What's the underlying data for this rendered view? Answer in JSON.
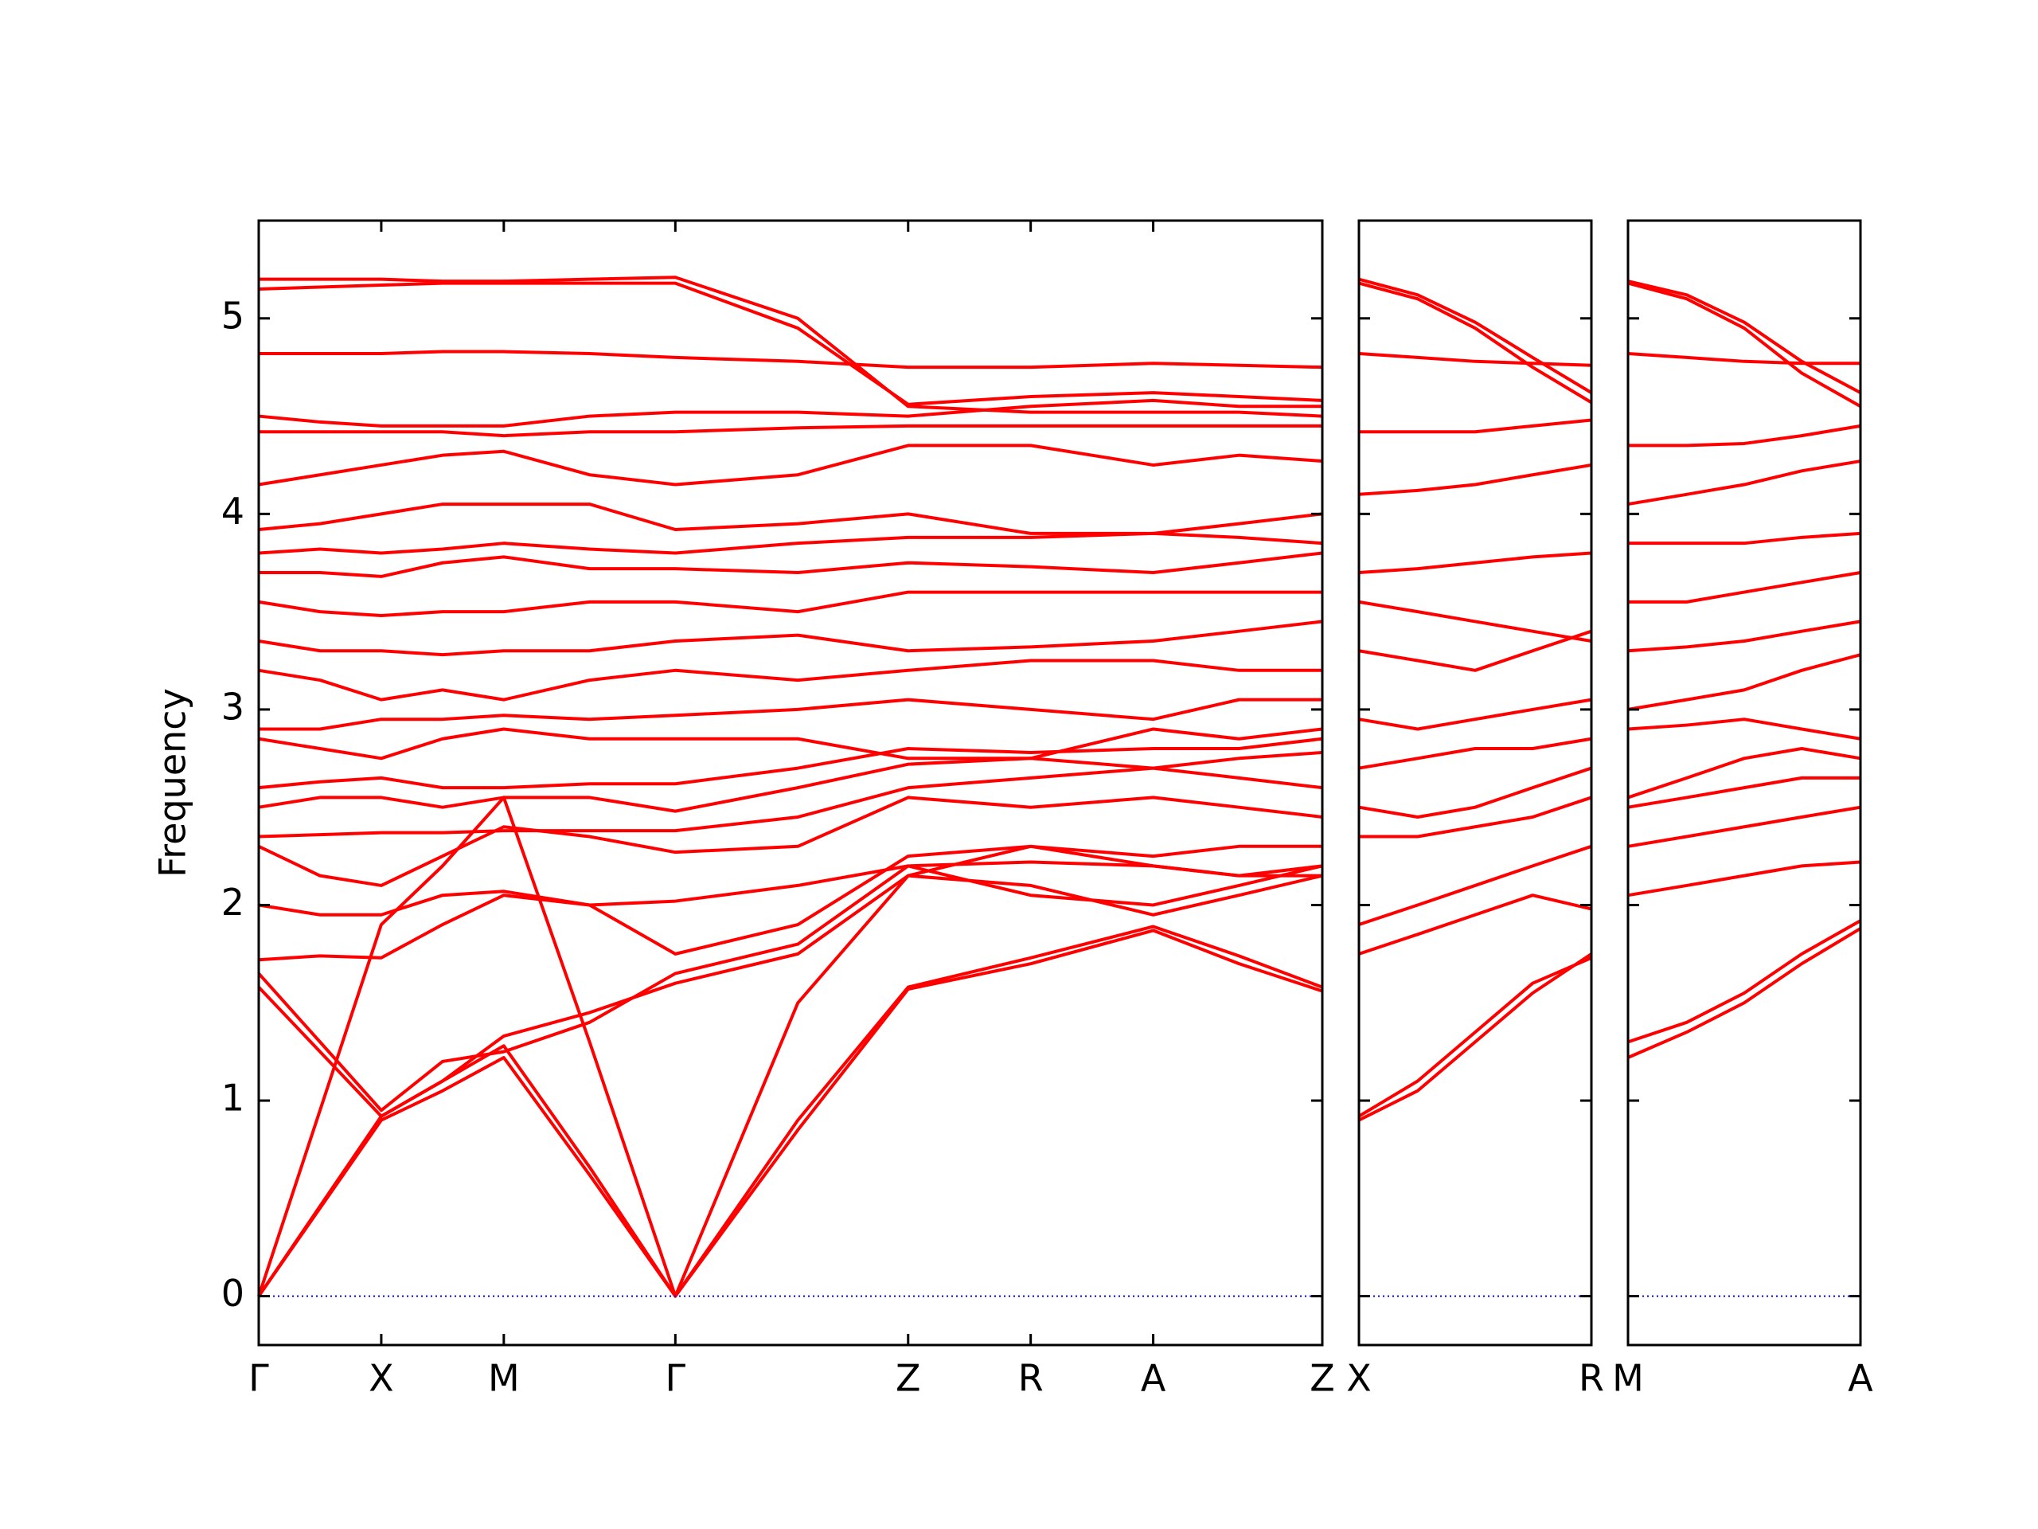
{
  "chart_data": [
    {
      "type": "line",
      "ylabel": "Frequency",
      "color": "#ff0000",
      "zero_line_color": "#0000ff",
      "xlim": [
        0,
        4.34
      ],
      "ylim": [
        -0.25,
        5.5
      ],
      "yticks": [
        0,
        1,
        2,
        3,
        4,
        5
      ],
      "xticks": [
        {
          "value": 0,
          "label": "Γ"
        },
        {
          "value": 0.5,
          "label": "X"
        },
        {
          "value": 1.0,
          "label": "M"
        },
        {
          "value": 1.7,
          "label": "Γ"
        },
        {
          "value": 2.65,
          "label": "Z"
        },
        {
          "value": 3.15,
          "label": "R"
        },
        {
          "value": 3.65,
          "label": "A"
        },
        {
          "value": 4.34,
          "label": "Z"
        }
      ],
      "x": [
        0,
        0.25,
        0.5,
        0.75,
        1.0,
        1.35,
        1.7,
        2.2,
        2.65,
        3.15,
        3.65,
        4.0,
        4.34
      ],
      "series": [
        {
          "values": [
            0,
            0.45,
            0.9,
            1.05,
            1.22,
            0.62,
            0,
            0.85,
            1.57,
            1.7,
            1.87,
            1.7,
            1.56
          ]
        },
        {
          "values": [
            0,
            0.46,
            0.92,
            1.1,
            1.28,
            0.66,
            0,
            0.9,
            1.58,
            1.73,
            1.89,
            1.74,
            1.58
          ]
        },
        {
          "values": [
            0,
            0.95,
            1.9,
            2.2,
            2.55,
            1.3,
            0,
            1.5,
            2.15,
            2.1,
            1.95,
            2.05,
            2.15
          ]
        },
        {
          "values": [
            1.58,
            1.25,
            0.92,
            1.1,
            1.33,
            1.45,
            1.6,
            1.75,
            2.15,
            2.3,
            2.2,
            2.15,
            2.15
          ]
        },
        {
          "values": [
            1.65,
            1.3,
            0.95,
            1.2,
            1.25,
            1.4,
            1.65,
            1.8,
            2.2,
            2.05,
            2.0,
            2.1,
            2.2
          ]
        },
        {
          "values": [
            1.72,
            1.74,
            1.73,
            1.9,
            2.05,
            2.0,
            1.75,
            1.9,
            2.25,
            2.3,
            2.25,
            2.3,
            2.3
          ]
        },
        {
          "values": [
            2.0,
            1.95,
            1.95,
            2.05,
            2.07,
            2.0,
            2.02,
            2.1,
            2.2,
            2.22,
            2.2,
            2.15,
            2.2
          ]
        },
        {
          "values": [
            2.3,
            2.15,
            2.1,
            2.25,
            2.4,
            2.35,
            2.27,
            2.3,
            2.55,
            2.5,
            2.55,
            2.5,
            2.45
          ]
        },
        {
          "values": [
            2.35,
            2.36,
            2.37,
            2.37,
            2.38,
            2.38,
            2.38,
            2.45,
            2.6,
            2.65,
            2.7,
            2.65,
            2.6
          ]
        },
        {
          "values": [
            2.5,
            2.55,
            2.55,
            2.5,
            2.55,
            2.55,
            2.48,
            2.6,
            2.72,
            2.75,
            2.7,
            2.75,
            2.78
          ]
        },
        {
          "values": [
            2.6,
            2.63,
            2.65,
            2.6,
            2.6,
            2.62,
            2.62,
            2.7,
            2.8,
            2.78,
            2.8,
            2.8,
            2.85
          ]
        },
        {
          "values": [
            2.85,
            2.8,
            2.75,
            2.85,
            2.9,
            2.85,
            2.85,
            2.85,
            2.75,
            2.75,
            2.9,
            2.85,
            2.9
          ]
        },
        {
          "values": [
            2.9,
            2.9,
            2.95,
            2.95,
            2.97,
            2.95,
            2.97,
            3.0,
            3.05,
            3.0,
            2.95,
            3.05,
            3.05
          ]
        },
        {
          "values": [
            3.2,
            3.15,
            3.05,
            3.1,
            3.05,
            3.15,
            3.2,
            3.15,
            3.2,
            3.25,
            3.25,
            3.2,
            3.2
          ]
        },
        {
          "values": [
            3.35,
            3.3,
            3.3,
            3.28,
            3.3,
            3.3,
            3.35,
            3.38,
            3.3,
            3.32,
            3.35,
            3.4,
            3.45
          ]
        },
        {
          "values": [
            3.55,
            3.5,
            3.48,
            3.5,
            3.5,
            3.55,
            3.55,
            3.5,
            3.6,
            3.6,
            3.6,
            3.6,
            3.6
          ]
        },
        {
          "values": [
            3.7,
            3.7,
            3.68,
            3.75,
            3.78,
            3.72,
            3.72,
            3.7,
            3.75,
            3.73,
            3.7,
            3.75,
            3.8
          ]
        },
        {
          "values": [
            3.8,
            3.82,
            3.8,
            3.82,
            3.85,
            3.82,
            3.8,
            3.85,
            3.88,
            3.88,
            3.9,
            3.88,
            3.85
          ]
        },
        {
          "values": [
            3.92,
            3.95,
            4.0,
            4.05,
            4.05,
            4.05,
            3.92,
            3.95,
            4.0,
            3.9,
            3.9,
            3.95,
            4.0
          ]
        },
        {
          "values": [
            4.15,
            4.2,
            4.25,
            4.3,
            4.32,
            4.2,
            4.15,
            4.2,
            4.35,
            4.35,
            4.25,
            4.3,
            4.27
          ]
        },
        {
          "values": [
            4.42,
            4.42,
            4.42,
            4.42,
            4.4,
            4.42,
            4.42,
            4.44,
            4.45,
            4.45,
            4.45,
            4.45,
            4.45
          ]
        },
        {
          "values": [
            4.5,
            4.47,
            4.45,
            4.45,
            4.45,
            4.5,
            4.52,
            4.52,
            4.5,
            4.55,
            4.58,
            4.55,
            4.55
          ]
        },
        {
          "values": [
            4.82,
            4.82,
            4.82,
            4.83,
            4.83,
            4.82,
            4.8,
            4.78,
            4.75,
            4.75,
            4.77,
            4.76,
            4.75
          ]
        },
        {
          "values": [
            5.15,
            5.16,
            5.17,
            5.18,
            5.18,
            5.18,
            5.18,
            4.95,
            4.56,
            4.6,
            4.62,
            4.6,
            4.58
          ]
        },
        {
          "values": [
            5.2,
            5.2,
            5.2,
            5.19,
            5.19,
            5.2,
            5.21,
            5.0,
            4.55,
            4.52,
            4.52,
            4.52,
            4.5
          ]
        }
      ]
    },
    {
      "type": "line",
      "color": "#ff0000",
      "zero_line_color": "#0000ff",
      "xlim": [
        0,
        0.95
      ],
      "ylim": [
        -0.25,
        5.5
      ],
      "yticks": [
        0,
        1,
        2,
        3,
        4,
        5
      ],
      "xticks": [
        {
          "value": 0,
          "label": "X"
        },
        {
          "value": 0.95,
          "label": "R"
        }
      ],
      "x": [
        0,
        0.24,
        0.475,
        0.71,
        0.95
      ],
      "series": [
        {
          "values": [
            0.9,
            1.05,
            1.3,
            1.55,
            1.75
          ]
        },
        {
          "values": [
            0.92,
            1.1,
            1.35,
            1.6,
            1.73
          ]
        },
        {
          "values": [
            1.75,
            1.85,
            1.95,
            2.05,
            1.98
          ]
        },
        {
          "values": [
            1.9,
            2.0,
            2.1,
            2.2,
            2.3
          ]
        },
        {
          "values": [
            2.35,
            2.35,
            2.4,
            2.45,
            2.55
          ]
        },
        {
          "values": [
            2.5,
            2.45,
            2.5,
            2.6,
            2.7
          ]
        },
        {
          "values": [
            2.7,
            2.75,
            2.8,
            2.8,
            2.85
          ]
        },
        {
          "values": [
            2.95,
            2.9,
            2.95,
            3.0,
            3.05
          ]
        },
        {
          "values": [
            3.3,
            3.25,
            3.2,
            3.3,
            3.4
          ]
        },
        {
          "values": [
            3.55,
            3.5,
            3.45,
            3.4,
            3.35
          ]
        },
        {
          "values": [
            3.7,
            3.72,
            3.75,
            3.78,
            3.8
          ]
        },
        {
          "values": [
            4.1,
            4.12,
            4.15,
            4.2,
            4.25
          ]
        },
        {
          "values": [
            4.42,
            4.42,
            4.42,
            4.45,
            4.48
          ]
        },
        {
          "values": [
            4.82,
            4.8,
            4.78,
            4.77,
            4.76
          ]
        },
        {
          "values": [
            5.18,
            5.1,
            4.95,
            4.75,
            4.57
          ]
        },
        {
          "values": [
            5.2,
            5.12,
            4.98,
            4.8,
            4.62
          ]
        }
      ]
    },
    {
      "type": "line",
      "color": "#ff0000",
      "zero_line_color": "#0000ff",
      "xlim": [
        0,
        0.95
      ],
      "ylim": [
        -0.25,
        5.5
      ],
      "yticks": [
        0,
        1,
        2,
        3,
        4,
        5
      ],
      "xticks": [
        {
          "value": 0,
          "label": "M"
        },
        {
          "value": 0.95,
          "label": "A"
        }
      ],
      "x": [
        0,
        0.24,
        0.475,
        0.71,
        0.95
      ],
      "series": [
        {
          "values": [
            1.22,
            1.35,
            1.5,
            1.7,
            1.88
          ]
        },
        {
          "values": [
            1.3,
            1.4,
            1.55,
            1.75,
            1.92
          ]
        },
        {
          "values": [
            2.05,
            2.1,
            2.15,
            2.2,
            2.22
          ]
        },
        {
          "values": [
            2.3,
            2.35,
            2.4,
            2.45,
            2.5
          ]
        },
        {
          "values": [
            2.5,
            2.55,
            2.6,
            2.65,
            2.65
          ]
        },
        {
          "values": [
            2.55,
            2.65,
            2.75,
            2.8,
            2.75
          ]
        },
        {
          "values": [
            2.9,
            2.92,
            2.95,
            2.9,
            2.85
          ]
        },
        {
          "values": [
            3.0,
            3.05,
            3.1,
            3.2,
            3.28
          ]
        },
        {
          "values": [
            3.3,
            3.32,
            3.35,
            3.4,
            3.45
          ]
        },
        {
          "values": [
            3.55,
            3.55,
            3.6,
            3.65,
            3.7
          ]
        },
        {
          "values": [
            3.85,
            3.85,
            3.85,
            3.88,
            3.9
          ]
        },
        {
          "values": [
            4.05,
            4.1,
            4.15,
            4.22,
            4.27
          ]
        },
        {
          "values": [
            4.35,
            4.35,
            4.36,
            4.4,
            4.45
          ]
        },
        {
          "values": [
            4.82,
            4.8,
            4.78,
            4.77,
            4.77
          ]
        },
        {
          "values": [
            5.18,
            5.1,
            4.95,
            4.72,
            4.55
          ]
        },
        {
          "values": [
            5.19,
            5.12,
            4.98,
            4.78,
            4.62
          ]
        }
      ]
    }
  ]
}
